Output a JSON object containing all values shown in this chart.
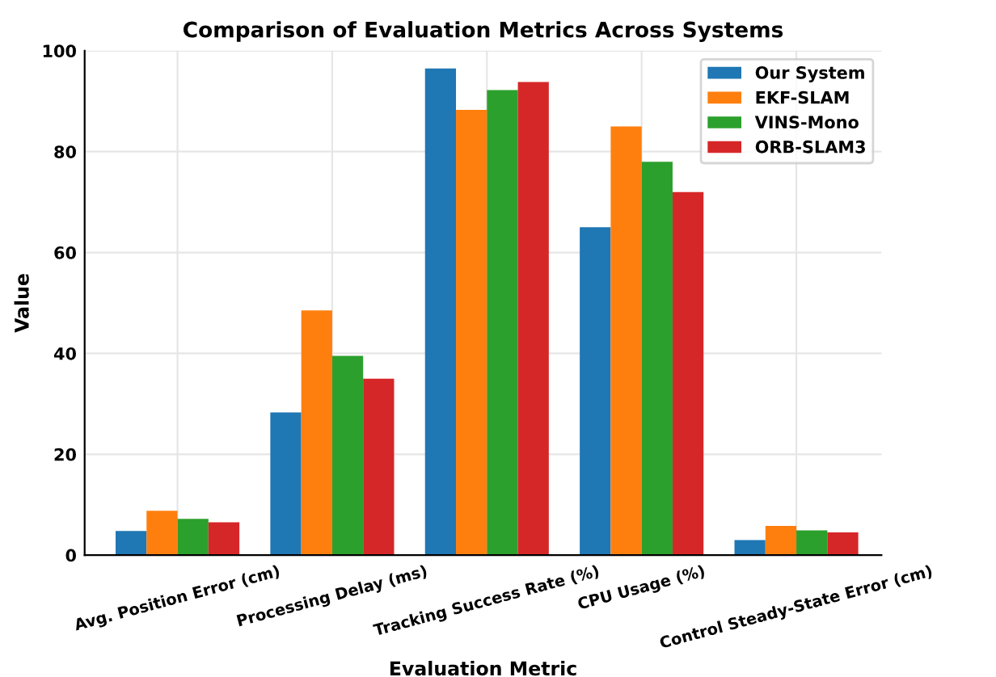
{
  "chart_data": {
    "type": "bar",
    "title": "Comparison of Evaluation Metrics Across Systems",
    "xlabel": "Evaluation Metric",
    "ylabel": "Value",
    "categories": [
      "Avg. Position Error (cm)",
      "Processing Delay (ms)",
      "Tracking Success Rate (%)",
      "CPU Usage (%)",
      "Control Steady-State Error (cm)"
    ],
    "series": [
      {
        "name": "Our System",
        "color": "#1f77b4",
        "values": [
          4.8,
          28.3,
          96.5,
          65,
          3
        ]
      },
      {
        "name": "EKF-SLAM",
        "color": "#ff7f0e",
        "values": [
          8.8,
          48.5,
          88.3,
          85,
          5.8
        ]
      },
      {
        "name": "VINS-Mono",
        "color": "#2ca02c",
        "values": [
          7.2,
          39.5,
          92.2,
          78,
          4.9
        ]
      },
      {
        "name": "ORB-SLAM3",
        "color": "#d62728",
        "values": [
          6.5,
          35,
          93.8,
          72,
          4.5
        ]
      }
    ],
    "ylim": [
      0,
      100
    ],
    "yticks": [
      0,
      20,
      40,
      60,
      80,
      100
    ],
    "grid": true,
    "legend": "top right"
  }
}
